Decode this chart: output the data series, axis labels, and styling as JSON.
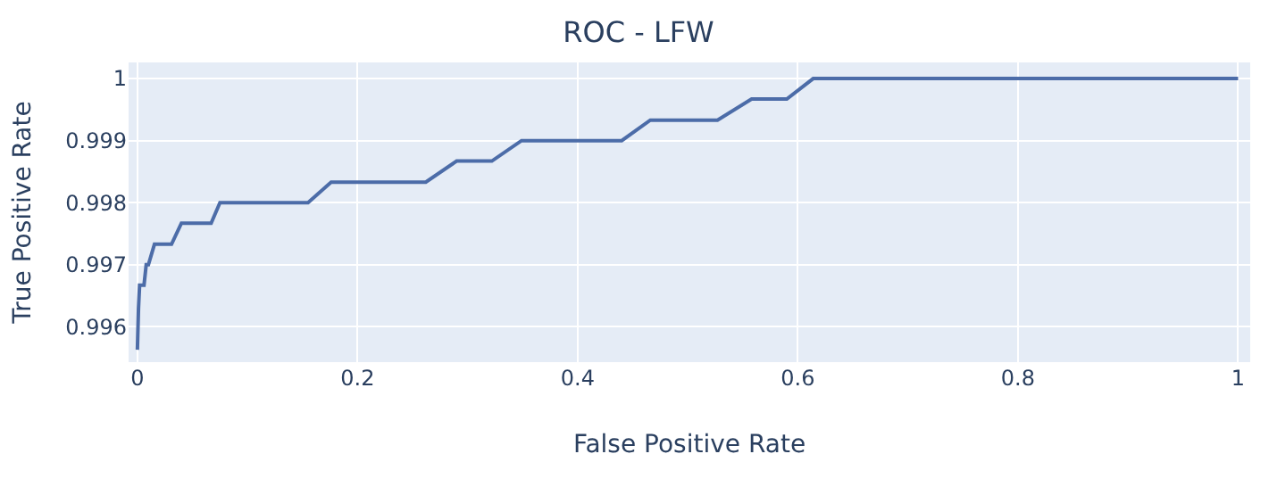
{
  "chart_data": {
    "type": "line",
    "title": "ROC - LFW",
    "xlabel": "False Positive Rate",
    "ylabel": "True Positive Rate",
    "x": [
      0,
      0.001,
      0.002,
      0.006,
      0.008,
      0.01,
      0.0155,
      0.018,
      0.031,
      0.04,
      0.067,
      0.075,
      0.155,
      0.176,
      0.262,
      0.29,
      0.322,
      0.349,
      0.44,
      0.466,
      0.527,
      0.558,
      0.59,
      0.614,
      1
    ],
    "series": [
      {
        "color": "#4c6ca8",
        "values": [
          0.99563,
          0.9963,
          0.99667,
          0.99667,
          0.997,
          0.997,
          0.99733,
          0.99733,
          0.99733,
          0.99767,
          0.99767,
          0.998,
          0.998,
          0.99833,
          0.99833,
          0.99867,
          0.99867,
          0.999,
          0.999,
          0.99933,
          0.99933,
          0.99967,
          0.99967,
          1,
          1
        ]
      }
    ],
    "xlim": [
      -0.008,
      1.011
    ],
    "ylim": [
      0.99543,
      1.00026
    ],
    "xticks": [
      0,
      0.2,
      0.4,
      0.6,
      0.8,
      1
    ],
    "yticks": [
      0.996,
      0.997,
      0.998,
      0.999,
      1
    ],
    "grid": true,
    "legend": false,
    "marker": "none",
    "line_style": "solid"
  }
}
